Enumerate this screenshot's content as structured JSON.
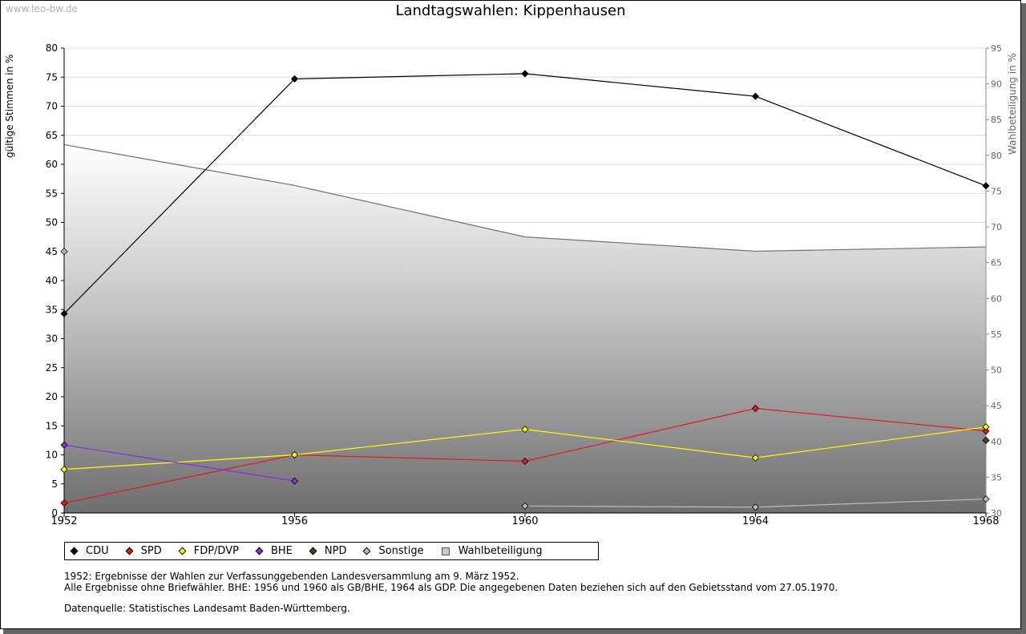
{
  "watermark": "www.leo-bw.de",
  "chart_data": {
    "type": "line",
    "title": "Landtagswahlen: Kippenhausen",
    "ylabel": "gültige Stimmen in %",
    "y2label": "Wahlbeteiligung in %",
    "xlabel": "",
    "categories": [
      "1952",
      "1956",
      "1960",
      "1964",
      "1968"
    ],
    "ylim": [
      0,
      80
    ],
    "y2lim": [
      30,
      95
    ],
    "yticks": [
      0,
      5,
      10,
      15,
      20,
      25,
      30,
      35,
      40,
      45,
      50,
      55,
      60,
      65,
      70,
      75,
      80
    ],
    "y2ticks": [
      30,
      35,
      40,
      45,
      50,
      55,
      60,
      65,
      70,
      75,
      80,
      85,
      90,
      95
    ],
    "series": [
      {
        "name": "CDU",
        "color": "#000000",
        "values": [
          34.3,
          74.7,
          75.6,
          71.7,
          56.3
        ]
      },
      {
        "name": "SPD",
        "color": "#e31a1c",
        "values": [
          1.7,
          10.0,
          8.9,
          18.0,
          14.1
        ]
      },
      {
        "name": "FDP/DVP",
        "color": "#ffff00",
        "values": [
          7.5,
          10.0,
          14.4,
          9.5,
          14.8
        ]
      },
      {
        "name": "BHE",
        "color": "#8b2be2",
        "values": [
          11.7,
          5.5,
          null,
          null,
          null
        ]
      },
      {
        "name": "NPD",
        "color": "#5a3b28",
        "values": [
          null,
          null,
          null,
          null,
          12.5
        ]
      },
      {
        "name": "Sonstige",
        "color": "#bbbbbb",
        "values": [
          45.0,
          null,
          1.2,
          1.0,
          2.4
        ]
      }
    ],
    "area_series": {
      "name": "Wahlbeteiligung",
      "axis": "right",
      "values": [
        81.5,
        75.8,
        68.6,
        66.6,
        67.2
      ]
    },
    "legend": [
      "CDU",
      "SPD",
      "FDP/DVP",
      "BHE",
      "NPD",
      "Sonstige",
      "Wahlbeteiligung"
    ]
  },
  "notes": {
    "line1": "1952: Ergebnisse der Wahlen zur Verfassunggebenden Landesversammlung am 9. März 1952.",
    "line2": "Alle Ergebnisse ohne Briefwähler. BHE: 1956 und 1960 als GB/BHE, 1964 als GDP. Die angegebenen Daten beziehen sich auf den Gebietsstand vom 27.05.1970.",
    "source": "Datenquelle: Statistisches Landesamt Baden-Württemberg."
  }
}
